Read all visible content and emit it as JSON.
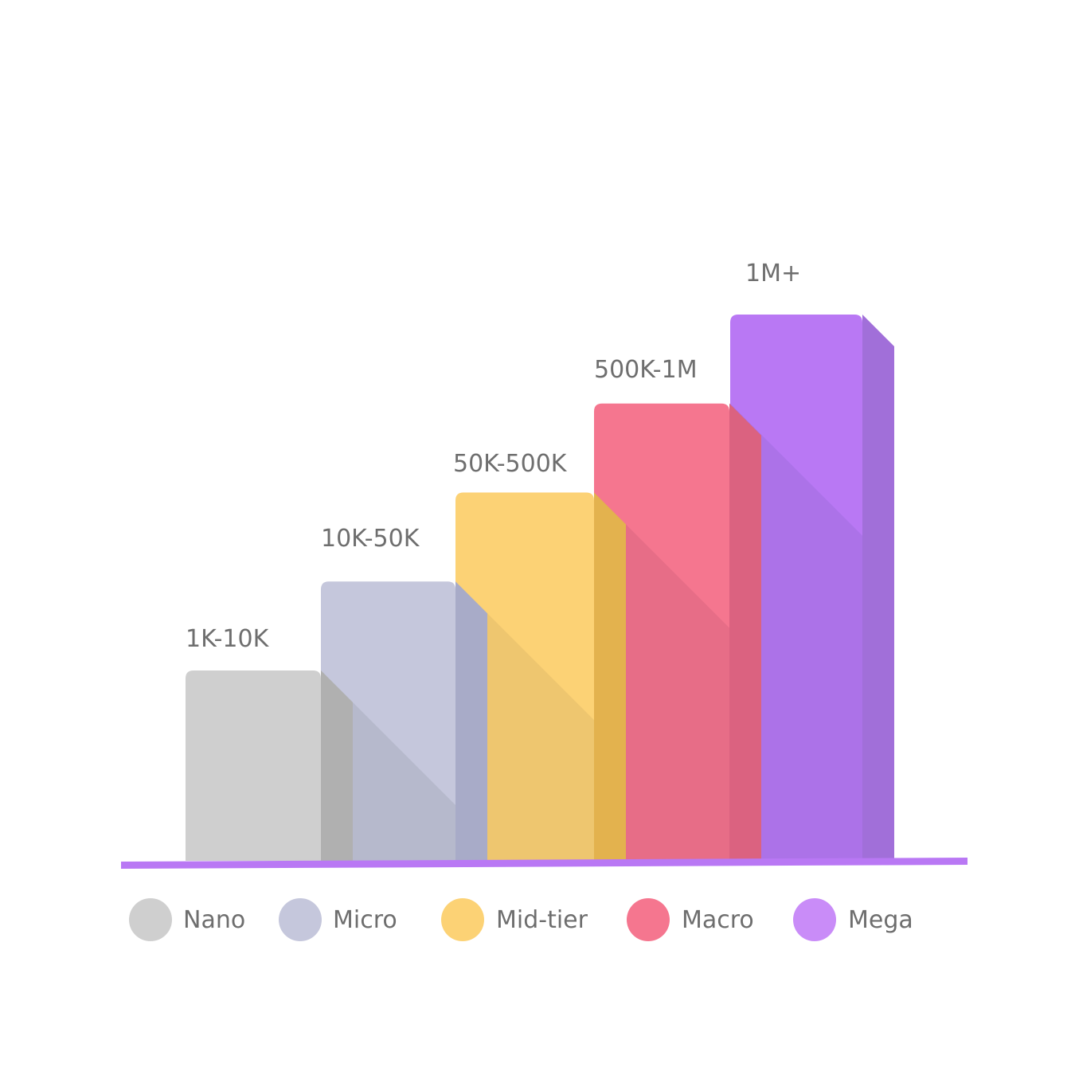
{
  "chart_data": {
    "type": "bar",
    "style": "3d-stepped",
    "categories": [
      "Nano",
      "Micro",
      "Mid-tier",
      "Macro",
      "Mega"
    ],
    "bar_labels": [
      "1K-10K",
      "10K-50K",
      "50K-500K",
      "500K-1M",
      "1M+"
    ],
    "values": [
      1,
      2,
      3,
      4,
      5
    ],
    "legend": {
      "placement": "bottom",
      "entries": [
        "Nano",
        "Micro",
        "Mid-tier",
        "Macro",
        "Mega"
      ]
    },
    "colors": {
      "front": [
        "#cfcfcf",
        "#c5c7dc",
        "#fcd275",
        "#f5768f",
        "#b978f4"
      ],
      "front_shade": [
        "#b9b9b9",
        "#b6b9cc",
        "#eec66f",
        "#e76d87",
        "#ac72e8"
      ],
      "side": [
        "#b0b0b0",
        "#a8abc8",
        "#e3b24e",
        "#db6280",
        "#a16fd9"
      ],
      "legend": [
        "#cfcfcf",
        "#c5c7dc",
        "#fcd275",
        "#f5768f",
        "#c98cf8"
      ],
      "baseline": "#b978f4"
    },
    "title": "",
    "xlabel": "",
    "ylabel": "",
    "grid": false
  }
}
